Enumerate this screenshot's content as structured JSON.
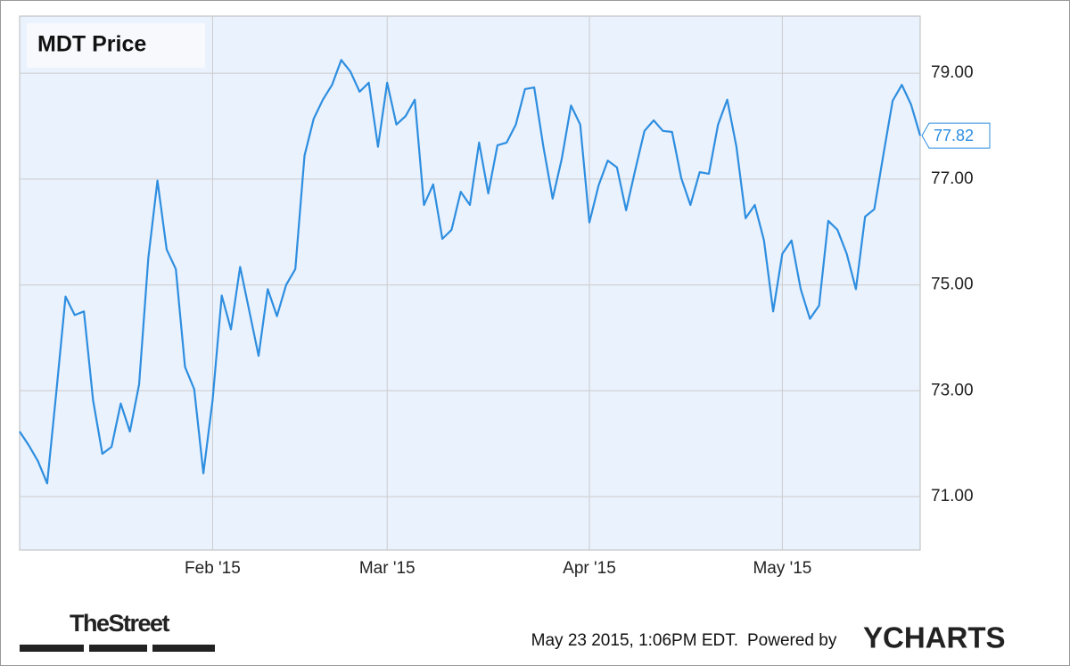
{
  "chart_data": {
    "type": "line",
    "title": "MDT Price",
    "categories": [
      null,
      null,
      null,
      null,
      null,
      null,
      null,
      null,
      null,
      null,
      null,
      null,
      null,
      null,
      null,
      null,
      null,
      null,
      null,
      null,
      null,
      "Feb '15",
      null,
      null,
      null,
      null,
      null,
      null,
      null,
      null,
      null,
      null,
      null,
      null,
      null,
      null,
      null,
      null,
      null,
      null,
      "Mar '15",
      null,
      null,
      null,
      null,
      null,
      null,
      null,
      null,
      null,
      null,
      null,
      null,
      null,
      null,
      null,
      null,
      null,
      null,
      null,
      null,
      null,
      "Apr '15",
      null,
      null,
      null,
      null,
      null,
      null,
      null,
      null,
      null,
      null,
      null,
      null,
      null,
      null,
      null,
      null,
      null,
      null,
      null,
      null,
      "May '15",
      null,
      null,
      null,
      null,
      null,
      null,
      null,
      null,
      null,
      null,
      null,
      null,
      null,
      null,
      null
    ],
    "values": [
      72.23,
      71.97,
      71.67,
      71.25,
      72.98,
      74.78,
      74.43,
      74.5,
      72.82,
      71.81,
      71.94,
      72.76,
      72.23,
      73.12,
      75.5,
      76.97,
      75.67,
      75.3,
      73.45,
      73.03,
      71.44,
      72.82,
      74.8,
      74.16,
      75.34,
      74.5,
      73.66,
      74.92,
      74.41,
      75.0,
      75.3,
      77.44,
      78.14,
      78.5,
      78.78,
      79.25,
      79.03,
      78.65,
      78.82,
      77.61,
      78.82,
      78.03,
      78.19,
      78.5,
      76.51,
      76.9,
      75.87,
      76.04,
      76.76,
      76.51,
      77.69,
      76.73,
      77.64,
      77.69,
      78.03,
      78.7,
      78.73,
      77.61,
      76.63,
      77.39,
      78.39,
      78.03,
      76.18,
      76.88,
      77.35,
      77.22,
      76.41,
      77.18,
      77.91,
      78.11,
      77.91,
      77.89,
      77.02,
      76.51,
      77.13,
      77.1,
      78.03,
      78.5,
      77.61,
      76.26,
      76.51,
      75.84,
      74.5,
      75.59,
      75.84,
      74.92,
      74.36,
      74.61,
      76.21,
      76.04,
      75.59,
      74.92,
      76.29,
      76.43,
      77.47,
      78.48,
      78.78,
      78.41,
      77.82
    ],
    "color": "#2e8ee0",
    "ylim": [
      69.99,
      80.08
    ],
    "yticks": [
      {
        "value": 71,
        "label": "71.00"
      },
      {
        "value": 73,
        "label": "73.00"
      },
      {
        "value": 75,
        "label": "75.00"
      },
      {
        "value": 77,
        "label": "77.00"
      },
      {
        "value": 79,
        "label": "79.00"
      }
    ],
    "grid": true
  },
  "footer": {
    "source": "TheStreet",
    "timestamp": "May 23 2015, 1:06PM EDT.",
    "powered_by": "Powered by",
    "brand": "YCHARTS"
  }
}
